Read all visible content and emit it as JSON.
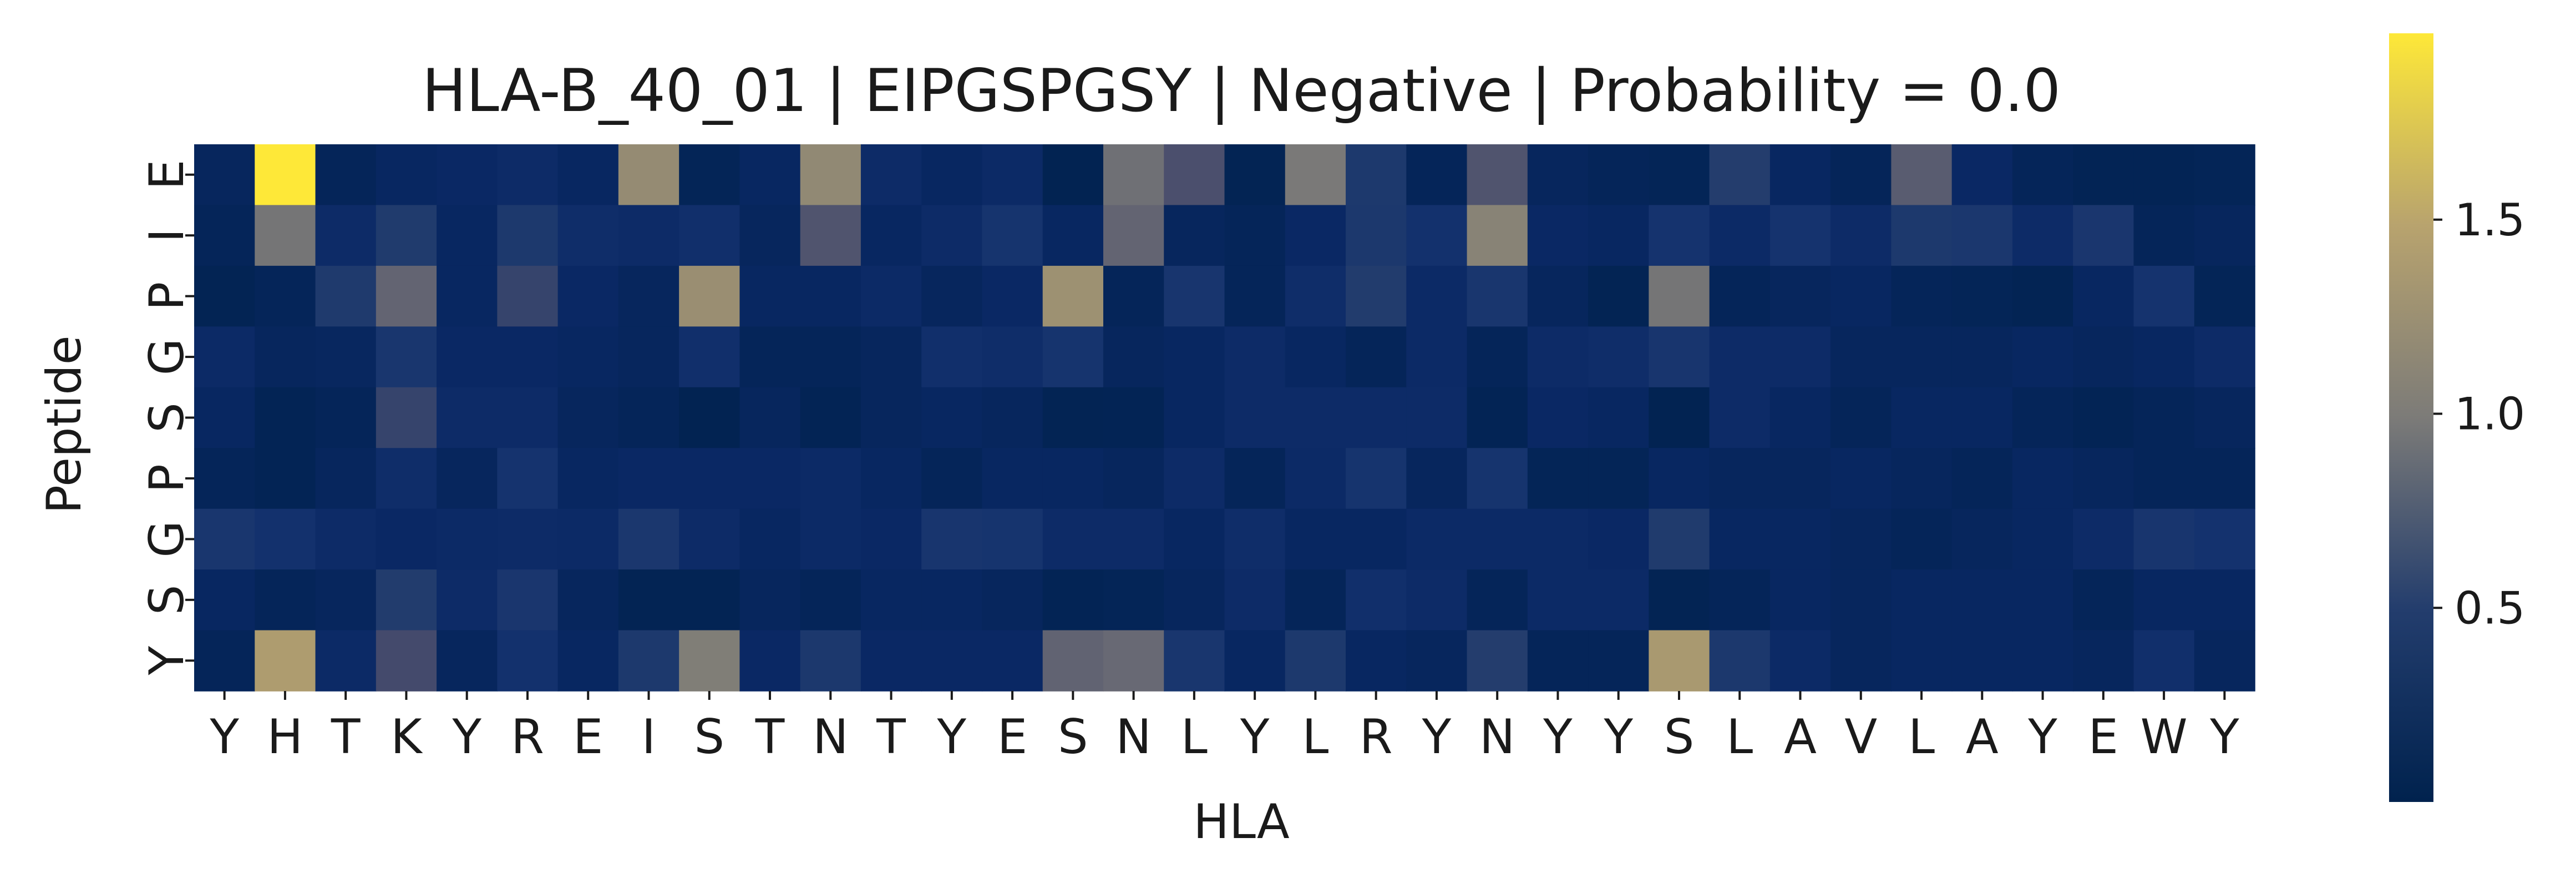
{
  "chart_data": {
    "type": "heatmap",
    "title": "HLA-B_40_01 | EIPGSPGSY | Negative | Probability = 0.0",
    "xlabel": "HLA",
    "ylabel": "Peptide",
    "x_categories": [
      "Y",
      "H",
      "T",
      "K",
      "Y",
      "R",
      "E",
      "I",
      "S",
      "T",
      "N",
      "T",
      "Y",
      "E",
      "S",
      "N",
      "L",
      "Y",
      "L",
      "R",
      "Y",
      "N",
      "Y",
      "Y",
      "S",
      "L",
      "A",
      "V",
      "L",
      "A",
      "Y",
      "E",
      "W",
      "Y"
    ],
    "y_categories": [
      "E",
      "I",
      "P",
      "G",
      "S",
      "P",
      "G",
      "S",
      "Y"
    ],
    "values": [
      [
        0.08,
        1.98,
        0.06,
        0.1,
        0.12,
        0.16,
        0.1,
        1.18,
        0.05,
        0.1,
        1.15,
        0.16,
        0.1,
        0.14,
        0.02,
        0.92,
        0.72,
        0.03,
        0.98,
        0.4,
        0.06,
        0.75,
        0.08,
        0.06,
        0.05,
        0.5,
        0.1,
        0.06,
        0.8,
        0.12,
        0.06,
        0.04,
        0.04,
        0.05
      ],
      [
        0.06,
        0.95,
        0.15,
        0.45,
        0.1,
        0.4,
        0.18,
        0.15,
        0.2,
        0.08,
        0.75,
        0.1,
        0.16,
        0.28,
        0.1,
        0.85,
        0.08,
        0.06,
        0.12,
        0.38,
        0.22,
        1.08,
        0.12,
        0.1,
        0.25,
        0.14,
        0.26,
        0.15,
        0.4,
        0.36,
        0.16,
        0.34,
        0.06,
        0.08
      ],
      [
        0.03,
        0.06,
        0.42,
        0.85,
        0.1,
        0.6,
        0.12,
        0.08,
        1.22,
        0.1,
        0.1,
        0.14,
        0.08,
        0.12,
        1.25,
        0.06,
        0.3,
        0.06,
        0.18,
        0.48,
        0.14,
        0.32,
        0.08,
        0.03,
        0.95,
        0.06,
        0.08,
        0.1,
        0.06,
        0.05,
        0.03,
        0.1,
        0.26,
        0.05
      ],
      [
        0.14,
        0.08,
        0.09,
        0.32,
        0.12,
        0.12,
        0.1,
        0.08,
        0.2,
        0.06,
        0.06,
        0.08,
        0.2,
        0.18,
        0.28,
        0.08,
        0.1,
        0.16,
        0.1,
        0.06,
        0.14,
        0.06,
        0.15,
        0.18,
        0.3,
        0.16,
        0.16,
        0.08,
        0.08,
        0.08,
        0.1,
        0.08,
        0.1,
        0.16
      ],
      [
        0.1,
        0.04,
        0.06,
        0.6,
        0.16,
        0.16,
        0.08,
        0.06,
        0.02,
        0.08,
        0.04,
        0.08,
        0.1,
        0.08,
        0.03,
        0.04,
        0.1,
        0.15,
        0.15,
        0.15,
        0.15,
        0.04,
        0.12,
        0.1,
        0.02,
        0.16,
        0.1,
        0.06,
        0.1,
        0.1,
        0.06,
        0.04,
        0.06,
        0.08
      ],
      [
        0.06,
        0.04,
        0.08,
        0.18,
        0.08,
        0.26,
        0.1,
        0.12,
        0.12,
        0.12,
        0.14,
        0.1,
        0.06,
        0.1,
        0.1,
        0.08,
        0.16,
        0.06,
        0.14,
        0.28,
        0.08,
        0.28,
        0.05,
        0.05,
        0.1,
        0.08,
        0.08,
        0.1,
        0.08,
        0.06,
        0.1,
        0.08,
        0.06,
        0.06
      ],
      [
        0.32,
        0.22,
        0.16,
        0.12,
        0.14,
        0.16,
        0.14,
        0.36,
        0.16,
        0.1,
        0.14,
        0.12,
        0.3,
        0.28,
        0.16,
        0.16,
        0.1,
        0.18,
        0.1,
        0.1,
        0.14,
        0.14,
        0.14,
        0.12,
        0.45,
        0.1,
        0.1,
        0.08,
        0.06,
        0.08,
        0.1,
        0.16,
        0.3,
        0.24
      ],
      [
        0.1,
        0.06,
        0.08,
        0.48,
        0.16,
        0.34,
        0.08,
        0.03,
        0.03,
        0.08,
        0.06,
        0.1,
        0.1,
        0.08,
        0.04,
        0.05,
        0.08,
        0.16,
        0.06,
        0.2,
        0.16,
        0.06,
        0.14,
        0.14,
        0.03,
        0.06,
        0.1,
        0.08,
        0.1,
        0.1,
        0.1,
        0.06,
        0.1,
        0.1
      ],
      [
        0.06,
        1.4,
        0.14,
        0.68,
        0.08,
        0.22,
        0.1,
        0.4,
        1.02,
        0.12,
        0.38,
        0.12,
        0.12,
        0.12,
        0.84,
        0.88,
        0.32,
        0.1,
        0.4,
        0.1,
        0.08,
        0.5,
        0.06,
        0.06,
        1.35,
        0.38,
        0.14,
        0.08,
        0.1,
        0.1,
        0.1,
        0.08,
        0.2,
        0.08
      ]
    ],
    "colormap": "cividis",
    "zlim": [
      0.0,
      1.98
    ],
    "colorbar_ticks": [
      "0.5",
      "1.0",
      "1.5"
    ],
    "colorbar_tick_values": [
      0.5,
      1.0,
      1.5
    ],
    "grid": false,
    "legend": "colorbar-right"
  }
}
